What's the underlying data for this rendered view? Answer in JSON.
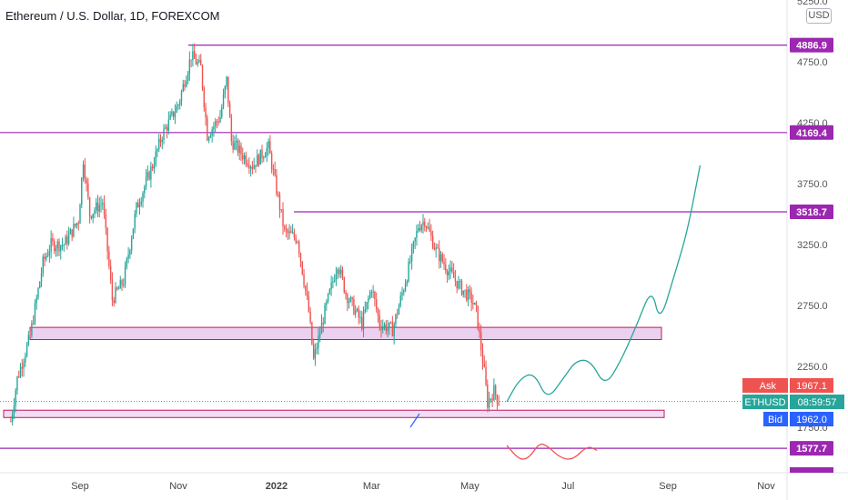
{
  "header": {
    "title": "Ethereum / U.S. Dollar, 1D, FOREXCOM",
    "currency_badge": "USD"
  },
  "colors": {
    "bull": "#26a69a",
    "bear": "#ef5350",
    "level_line": "#9c27b0",
    "zone_border": "#c2185b",
    "zone_fill": "#e8c8ec",
    "projection_up": "#26a69a",
    "projection_down": "#ef5350",
    "ask": "#ef5350",
    "bid": "#2962ff",
    "symbol": "#26a69a"
  },
  "chart_data": {
    "type": "candlestick",
    "y_ticks": [
      "5250.0",
      "4750.0",
      "4250.0",
      "3750.0",
      "3250.0",
      "2750.0",
      "2250.0",
      "1750.0"
    ],
    "x_ticks": [
      "Sep",
      "Nov",
      "2022",
      "Mar",
      "May",
      "Jul",
      "Sep",
      "Nov"
    ],
    "horizontal_levels": [
      {
        "label": "4886.9",
        "value": 4886.9
      },
      {
        "label": "4169.4",
        "value": 4169.4
      },
      {
        "label": "3518.7",
        "value": 3518.7
      },
      {
        "label": "1577.7",
        "value": 1577.7
      }
    ],
    "zones": [
      {
        "from": 2470,
        "to": 2570
      },
      {
        "from": 1830,
        "to": 1890
      }
    ],
    "price_tags": {
      "ask_label": "Ask",
      "ask_value": "1967.1",
      "symbol_label": "ETHUSD",
      "countdown": "08:59:57",
      "bid_label": "Bid",
      "bid_value": "1962.0"
    },
    "price_path": [
      [
        "2021-07-20",
        1800
      ],
      [
        "2021-07-24",
        2150
      ],
      [
        "2021-08-01",
        2500
      ],
      [
        "2021-08-09",
        3100
      ],
      [
        "2021-08-14",
        3250
      ],
      [
        "2021-08-22",
        3250
      ],
      [
        "2021-08-31",
        3450
      ],
      [
        "2021-09-03",
        3950
      ],
      [
        "2021-09-07",
        3500
      ],
      [
        "2021-09-15",
        3600
      ],
      [
        "2021-09-21",
        2800
      ],
      [
        "2021-09-28",
        2950
      ],
      [
        "2021-10-06",
        3550
      ],
      [
        "2021-10-16",
        3900
      ],
      [
        "2021-10-22",
        4150
      ],
      [
        "2021-11-01",
        4400
      ],
      [
        "2021-11-09",
        4800
      ],
      [
        "2021-11-15",
        4700
      ],
      [
        "2021-11-19",
        4150
      ],
      [
        "2021-11-27",
        4300
      ],
      [
        "2021-12-01",
        4600
      ],
      [
        "2021-12-04",
        4100
      ],
      [
        "2021-12-10",
        4000
      ],
      [
        "2021-12-17",
        3900
      ],
      [
        "2021-12-27",
        4050
      ],
      [
        "2022-01-01",
        3700
      ],
      [
        "2022-01-06",
        3350
      ],
      [
        "2022-01-14",
        3300
      ],
      [
        "2022-01-21",
        2700
      ],
      [
        "2022-01-24",
        2300
      ],
      [
        "2022-01-31",
        2700
      ],
      [
        "2022-02-08",
        3100
      ],
      [
        "2022-02-13",
        2850
      ],
      [
        "2022-02-23",
        2600
      ],
      [
        "2022-03-01",
        2900
      ],
      [
        "2022-03-06",
        2600
      ],
      [
        "2022-03-14",
        2550
      ],
      [
        "2022-03-23",
        3000
      ],
      [
        "2022-03-30",
        3400
      ],
      [
        "2022-04-03",
        3450
      ],
      [
        "2022-04-10",
        3200
      ],
      [
        "2022-04-17",
        3050
      ],
      [
        "2022-04-25",
        2900
      ],
      [
        "2022-05-02",
        2800
      ],
      [
        "2022-05-05",
        2700
      ],
      [
        "2022-05-10",
        2200
      ],
      [
        "2022-05-12",
        1950
      ],
      [
        "2022-05-16",
        2050
      ],
      [
        "2022-05-19",
        1962
      ]
    ],
    "projection_up": [
      [
        "2022-05-24",
        1960
      ],
      [
        "2022-06-01",
        2150
      ],
      [
        "2022-06-10",
        2200
      ],
      [
        "2022-06-18",
        1970
      ],
      [
        "2022-06-28",
        2150
      ],
      [
        "2022-07-06",
        2300
      ],
      [
        "2022-07-15",
        2300
      ],
      [
        "2022-07-24",
        2080
      ],
      [
        "2022-08-03",
        2300
      ],
      [
        "2022-08-13",
        2600
      ],
      [
        "2022-08-22",
        2900
      ],
      [
        "2022-08-27",
        2600
      ],
      [
        "2022-09-05",
        3000
      ],
      [
        "2022-09-13",
        3350
      ],
      [
        "2022-09-21",
        3900
      ]
    ],
    "projection_down": [
      [
        "2022-05-24",
        1600
      ],
      [
        "2022-06-01",
        1480
      ],
      [
        "2022-06-07",
        1500
      ],
      [
        "2022-06-13",
        1620
      ],
      [
        "2022-06-18",
        1600
      ],
      [
        "2022-06-26",
        1500
      ],
      [
        "2022-07-04",
        1480
      ],
      [
        "2022-07-13",
        1600
      ],
      [
        "2022-07-19",
        1560
      ]
    ]
  }
}
